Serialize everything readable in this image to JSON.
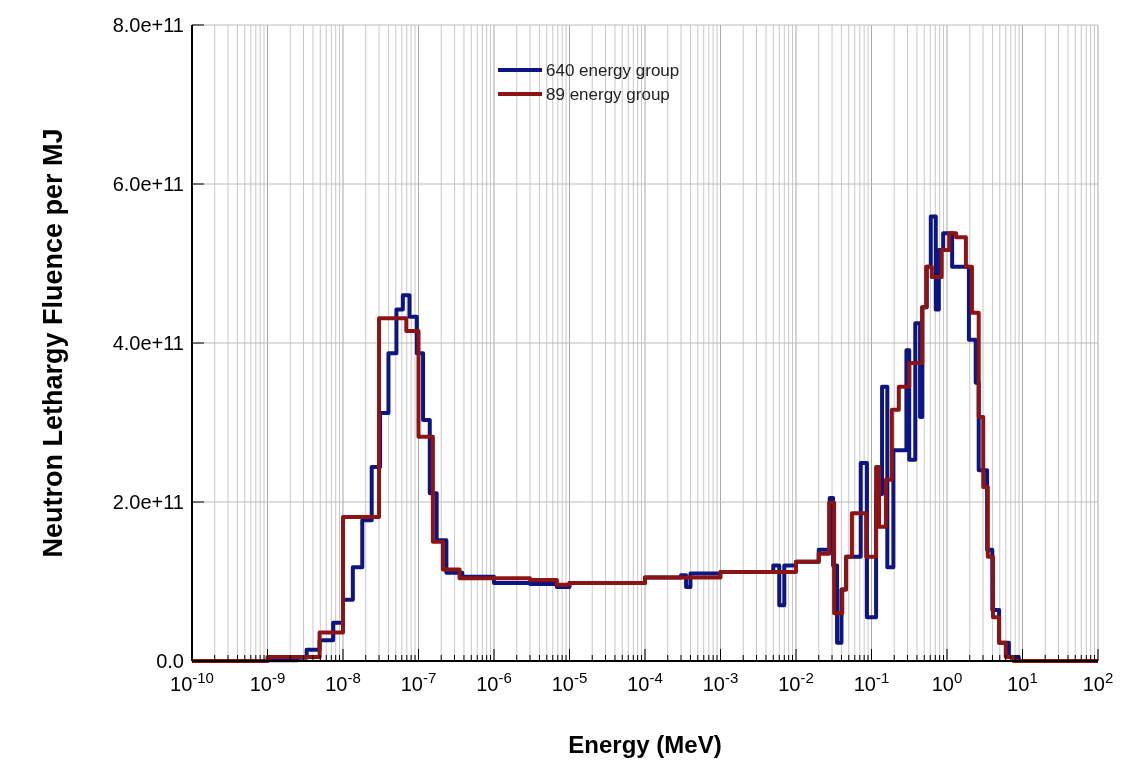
{
  "chart_data": {
    "type": "step",
    "xlabel": "Energy (MeV)",
    "ylabel": "Neutron Lethargy Fluence per MJ",
    "log": "x",
    "grid": true,
    "legend": "top",
    "line_style": "solid",
    "marker": "none",
    "xlim": [
      1e-10,
      100
    ],
    "xticks": [
      {
        "value": 1e-10,
        "label": "10$^{-10}$"
      },
      {
        "value": 1e-09,
        "label": "10$^{-9}$"
      },
      {
        "value": 1e-08,
        "label": "10$^{-8}$"
      },
      {
        "value": 1e-07,
        "label": "10$^{-7}$"
      },
      {
        "value": 1e-06,
        "label": "10$^{-6}$"
      },
      {
        "value": 1e-05,
        "label": "10$^{-5}$"
      },
      {
        "value": 0.0001,
        "label": "10$^{-4}$"
      },
      {
        "value": 0.001,
        "label": "10$^{-3}$"
      },
      {
        "value": 0.01,
        "label": "10$^{-2}$"
      },
      {
        "value": 0.1,
        "label": "10$^{-1}$"
      },
      {
        "value": 1,
        "label": "10$^{0}$"
      },
      {
        "value": 10,
        "label": "10$^{1}$"
      },
      {
        "value": 100,
        "label": "10$^{2}$"
      }
    ],
    "ylim": [
      0,
      800000000000.0
    ],
    "yticks": [
      {
        "value": 0,
        "label": "0.0"
      },
      {
        "value": 200000000000.0,
        "label": "2.0e+11"
      },
      {
        "value": 400000000000.0,
        "label": "4.0e+11"
      },
      {
        "value": 600000000000.0,
        "label": "6.0e+11"
      },
      {
        "value": 800000000000.0,
        "label": "8.0e+11"
      }
    ],
    "series": [
      {
        "name": "640 energy group",
        "color": "#0d1580",
        "x": [
          1e-10,
          1e-09,
          2.5e-09,
          3.3e-09,
          4.9e-09,
          7.4e-09,
          1e-08,
          1.35e-08,
          1.8e-08,
          2.4e-08,
          3.1e-08,
          4e-08,
          5.1e-08,
          6.2e-08,
          7.6e-08,
          9.5e-08,
          1.15e-07,
          1.41e-07,
          1.74e-07,
          2.34e-07,
          3.8e-07,
          1e-06,
          3e-06,
          6.8e-06,
          1e-05,
          0.0001,
          0.0003,
          0.00035,
          0.0004,
          0.001,
          0.005,
          0.006,
          0.007,
          0.01,
          0.02,
          0.028,
          0.031,
          0.035,
          0.04,
          0.046,
          0.072,
          0.087,
          0.115,
          0.138,
          0.162,
          0.195,
          0.29,
          0.316,
          0.38,
          0.44,
          0.47,
          0.54,
          0.61,
          0.71,
          0.78,
          0.89,
          1.17,
          1.45,
          1.95,
          2.4,
          2.63,
          3.4,
          3.98,
          4.9,
          6.6,
          8.9,
          12,
          16.6,
          100
        ],
        "values": [
          0,
          1000000000.0,
          4000000000.0,
          14000000000.0,
          26000000000.0,
          48000000000.0,
          77000000000.0,
          118000000000.0,
          177000000000.0,
          244000000000.0,
          312000000000.0,
          387000000000.0,
          442000000000.0,
          460000000000.0,
          433000000000.0,
          387000000000.0,
          303000000000.0,
          211000000000.0,
          152000000000.0,
          111000000000.0,
          106000000000.0,
          98000000000.0,
          97000000000.0,
          93000000000.0,
          98000000000.0,
          105000000000.0,
          108000000000.0,
          93000000000.0,
          110000000000.0,
          112000000000.0,
          120000000000.0,
          70000000000.0,
          120000000000.0,
          125000000000.0,
          140000000000.0,
          205000000000.0,
          120000000000.0,
          23000000000.0,
          90000000000.0,
          131000000000.0,
          249000000000.0,
          55000000000.0,
          210000000000.0,
          345000000000.0,
          118000000000.0,
          265000000000.0,
          391000000000.0,
          253000000000.0,
          425000000000.0,
          307000000000.0,
          445000000000.0,
          496000000000.0,
          559000000000.0,
          442000000000.0,
          517000000000.0,
          538000000000.0,
          496000000000.0,
          496000000000.0,
          404000000000.0,
          350000000000.0,
          240000000000.0,
          140000000000.0,
          64000000000.0,
          23000000000.0,
          5000000000.0,
          0,
          0,
          0,
          0
        ]
      },
      {
        "name": "89 energy group",
        "color": "#8c1414",
        "x": [
          1e-10,
          1e-09,
          4.9e-09,
          1e-08,
          3e-08,
          6.9e-08,
          1e-07,
          1.55e-07,
          2.1e-07,
          3.5e-07,
          3e-06,
          6.8e-06,
          1e-05,
          0.0001,
          0.001,
          0.01,
          0.02,
          0.0275,
          0.032,
          0.041,
          0.046,
          0.055,
          0.085,
          0.093,
          0.115,
          0.126,
          0.155,
          0.186,
          0.23,
          0.316,
          0.47,
          0.53,
          0.63,
          0.85,
          1.07,
          1.32,
          1.78,
          2.14,
          2.63,
          3.02,
          3.47,
          4.07,
          4.9,
          6.0,
          7.6,
          9.1,
          11,
          20.4,
          100
        ],
        "values": [
          0,
          5000000000.0,
          36000000000.0,
          181000000000.0,
          431000000000.0,
          415000000000.0,
          282000000000.0,
          150000000000.0,
          115000000000.0,
          104000000000.0,
          102000000000.0,
          96000000000.0,
          98000000000.0,
          105000000000.0,
          112000000000.0,
          125000000000.0,
          135000000000.0,
          199000000000.0,
          60000000000.0,
          90000000000.0,
          131000000000.0,
          186000000000.0,
          131000000000.0,
          131000000000.0,
          244000000000.0,
          169000000000.0,
          228000000000.0,
          316000000000.0,
          345000000000.0,
          375000000000.0,
          445000000000.0,
          496000000000.0,
          483000000000.0,
          517000000000.0,
          538000000000.0,
          533000000000.0,
          496000000000.0,
          438000000000.0,
          307000000000.0,
          219000000000.0,
          131000000000.0,
          55000000000.0,
          23000000000.0,
          5000000000.0,
          0,
          0,
          0,
          0,
          0
        ]
      }
    ]
  }
}
